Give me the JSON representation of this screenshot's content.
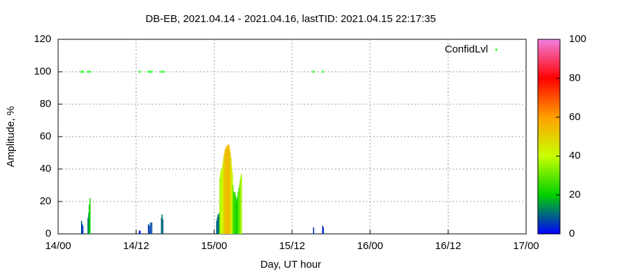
{
  "chart_data": {
    "type": "impulse",
    "title": "DB-EB, 2021.04.14 - 2021.04.16, lastTID: 2021.04.15 22:17:35",
    "xlabel": "Day, UT hour",
    "ylabel": "Amplitude, %",
    "xlim": [
      0,
      72
    ],
    "xticks": [
      {
        "value": 0,
        "label": "14/00"
      },
      {
        "value": 12,
        "label": "14/12"
      },
      {
        "value": 24,
        "label": "15/00"
      },
      {
        "value": 36,
        "label": "15/12"
      },
      {
        "value": 48,
        "label": "16/00"
      },
      {
        "value": 60,
        "label": "16/12"
      },
      {
        "value": 72,
        "label": "17/00"
      }
    ],
    "ylim": [
      0,
      120
    ],
    "yticks": [
      0,
      20,
      40,
      60,
      80,
      100,
      120
    ],
    "cblim": [
      0,
      100
    ],
    "cbticks": [
      0,
      20,
      40,
      60,
      80,
      100
    ],
    "palette": [
      "#0000ff",
      "#00d000",
      "#c8ff00",
      "#ffa000",
      "#ff0000",
      "#f080e0"
    ],
    "grid": true,
    "legend": "upper right",
    "series": [
      {
        "x": [
          3.6,
          3.7,
          3.8,
          4.6,
          4.7,
          4.8,
          4.9,
          12.5,
          12.6,
          13.9,
          14.0,
          14.2,
          14.4,
          15.9,
          16.0,
          16.1,
          24.4,
          24.5,
          24.6,
          24.7,
          24.8,
          24.9,
          25.0,
          25.1,
          25.2,
          25.3,
          25.4,
          25.5,
          25.6,
          25.7,
          25.8,
          25.9,
          26.0,
          26.1,
          26.2,
          26.3,
          26.4,
          26.5,
          26.6,
          26.7,
          26.8,
          26.9,
          27.0,
          27.1,
          27.2,
          27.3,
          27.4,
          27.5,
          27.6,
          27.7,
          27.8,
          27.9,
          28.0,
          28.1,
          28.2,
          39.3,
          40.7,
          40.8
        ],
        "values": [
          8,
          6,
          5,
          10,
          13,
          18,
          22,
          2,
          2,
          6,
          5,
          7,
          7,
          10,
          12,
          9,
          8,
          10,
          12,
          11,
          13,
          35,
          38,
          40,
          40,
          42,
          45,
          48,
          50,
          52,
          53,
          54,
          53,
          55,
          54,
          55,
          52,
          50,
          47,
          42,
          38,
          30,
          26,
          25,
          26,
          24,
          22,
          20,
          23,
          26,
          28,
          30,
          33,
          35,
          37,
          4,
          5,
          4
        ]
      },
      {
        "name": "ConfidLvl",
        "type": "scatter",
        "color": "#00ff00",
        "x": [
          3.6,
          3.8,
          4.6,
          4.9,
          12.5,
          13.9,
          14.1,
          14.4,
          15.9,
          16.2,
          39.3,
          40.7
        ],
        "values": [
          100,
          100,
          100,
          100,
          100,
          100,
          100,
          100,
          100,
          100,
          100,
          100
        ]
      }
    ]
  }
}
